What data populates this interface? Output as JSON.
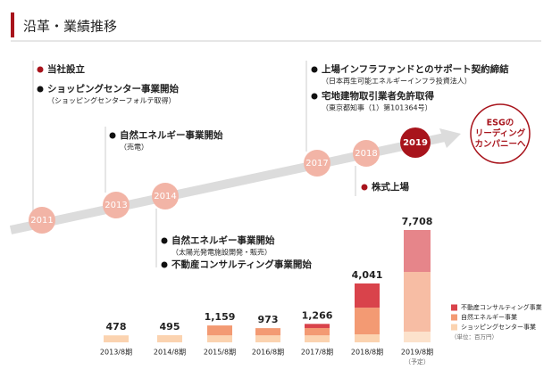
{
  "title": "沿革・業績推移",
  "timeline": {
    "years": [
      "2011",
      "2013",
      "2014",
      "2017",
      "2018",
      "2019"
    ],
    "goal": [
      "ESGの",
      "リーディング",
      "カンパニーへ"
    ],
    "events": [
      {
        "items": [
          {
            "text": "当社設立"
          },
          {
            "text": "ショッピングセンター事業開始",
            "note": "（ショッピングセンターフォルテ取得）"
          }
        ]
      },
      {
        "items": [
          {
            "text": "自然エネルギー事業開始",
            "note": "（売電）"
          }
        ]
      },
      {
        "items": [
          {
            "text": "自然エネルギー事業開始",
            "note": "（太陽光発電施設開発・販売）"
          },
          {
            "text": "不動産コンサルティング事業開始"
          }
        ]
      },
      {
        "items": [
          {
            "text": "上場インフラファンドとのサポート契約締結",
            "note": "（日本再生可能エネルギーインフラ投資法人）"
          },
          {
            "text": "宅地建物取引業者免許取得",
            "note": "（東京都知事（1）第101364号）"
          }
        ]
      },
      {
        "items": [
          {
            "text": "株式上場"
          }
        ]
      }
    ]
  },
  "chart_data": {
    "type": "stacked_bar",
    "categories": [
      "2013/8期",
      "2014/8期",
      "2015/8期",
      "2016/8期",
      "2017/8期",
      "2018/8期",
      "2019/8期"
    ],
    "category_notes": [
      null,
      null,
      null,
      null,
      null,
      null,
      "（予定）"
    ],
    "series": [
      {
        "name": "ショッピングセンター事業",
        "color": "#fbd3b0",
        "values": [
          478,
          495,
          480,
          480,
          480,
          550,
          735
        ]
      },
      {
        "name": "自然エネルギー事業",
        "color": "#f39a73",
        "values": [
          0,
          0,
          679,
          493,
          500,
          1830,
          4098
        ]
      },
      {
        "name": "不動産コンサルティング事業",
        "color": "#d9434b",
        "values": [
          0,
          0,
          0,
          0,
          286,
          1661,
          2875
        ]
      }
    ],
    "totals": [
      478,
      495,
      1159,
      973,
      1266,
      4041,
      7708
    ],
    "total_labels": [
      "478",
      "495",
      "1,159",
      "973",
      "1,266",
      "4,041",
      "7,708"
    ],
    "unit": "（単位：百万円）"
  }
}
